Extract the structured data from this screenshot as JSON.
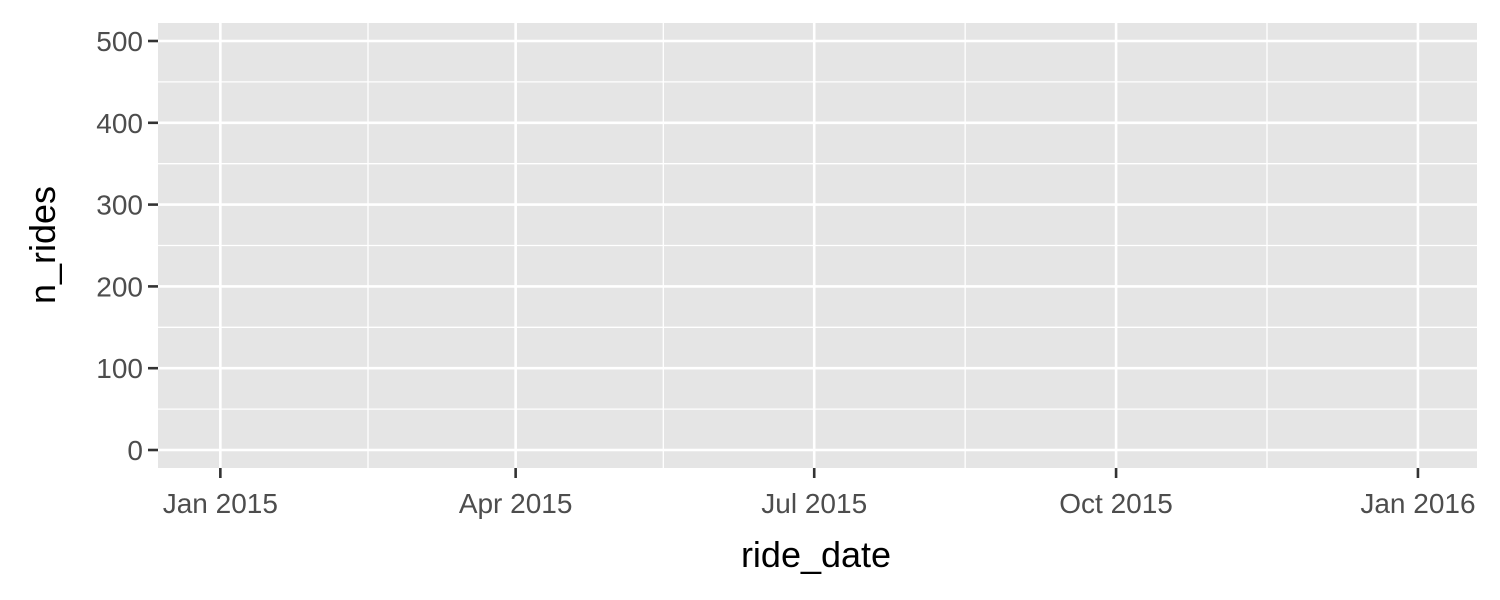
{
  "chart_data": {
    "type": "line",
    "title": "",
    "xlabel": "ride_date",
    "ylabel": "n_rides",
    "x_scale": "date",
    "xlim": [
      "2014-12-13",
      "2016-01-19"
    ],
    "ylim": [
      -22,
      522
    ],
    "x_ticks": [
      {
        "value": "2015-01-01",
        "label": "Jan 2015"
      },
      {
        "value": "2015-04-01",
        "label": "Apr 2015"
      },
      {
        "value": "2015-07-01",
        "label": "Jul 2015"
      },
      {
        "value": "2015-10-01",
        "label": "Oct 2015"
      },
      {
        "value": "2016-01-01",
        "label": "Jan 2016"
      }
    ],
    "x_minor_ticks": [
      "2015-02-15",
      "2015-05-16",
      "2015-08-16",
      "2015-11-16"
    ],
    "y_ticks": [
      {
        "value": 0,
        "label": "0"
      },
      {
        "value": 100,
        "label": "100"
      },
      {
        "value": 200,
        "label": "200"
      },
      {
        "value": 300,
        "label": "300"
      },
      {
        "value": 400,
        "label": "400"
      },
      {
        "value": 500,
        "label": "500"
      }
    ],
    "y_minor_ticks": [
      50,
      150,
      250,
      350,
      450
    ],
    "series": [],
    "grid": true,
    "legend": "none",
    "colors": {
      "panel_background": "#e5e5e5",
      "grid": "#ffffff",
      "tick_mark": "#333333",
      "tick_text": "#4d4d4d",
      "axis_title": "#000000"
    }
  }
}
